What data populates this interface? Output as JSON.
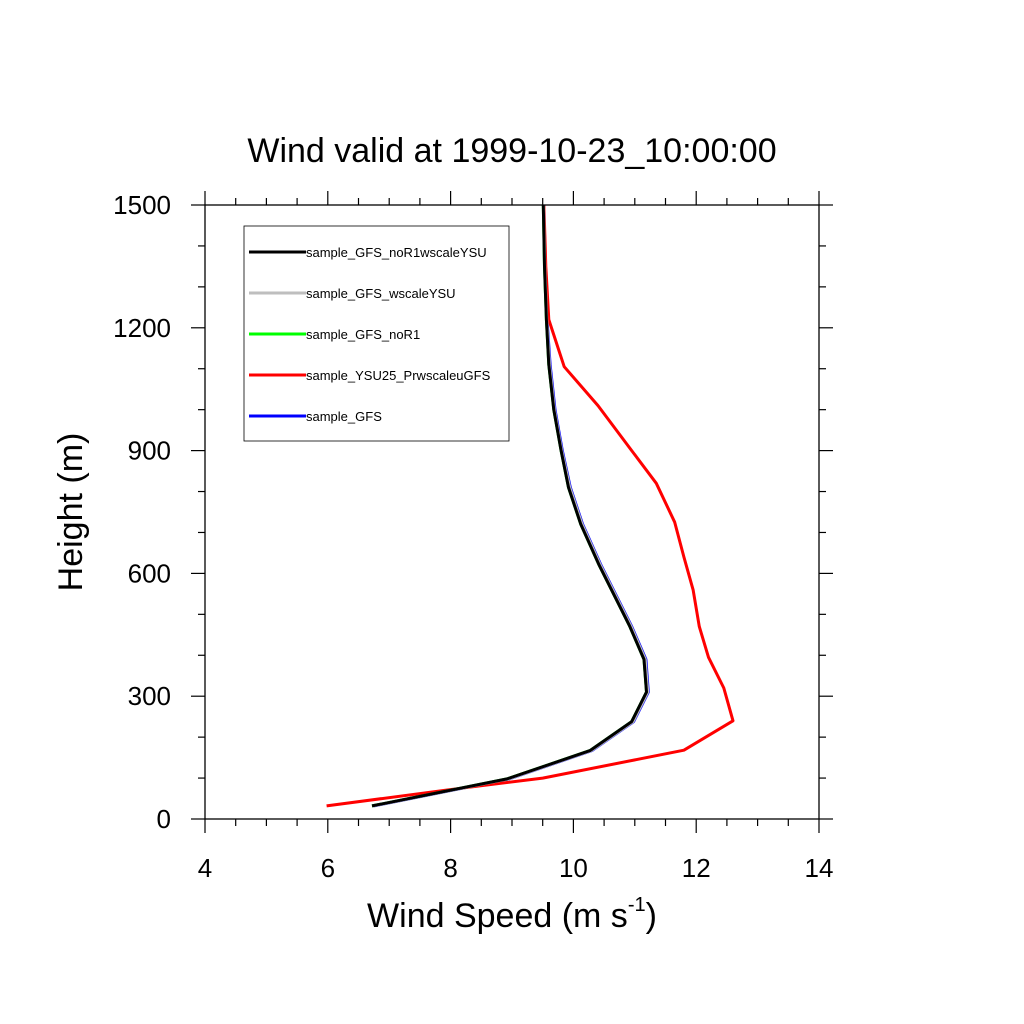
{
  "chart_data": {
    "type": "line",
    "title": "Wind valid at 1999-10-23_10:00:00",
    "xlabel": "Wind Speed (m s",
    "xlabel_superscript": "-1",
    "xlabel_close": ")",
    "ylabel": "Height (m)",
    "xlim": [
      4,
      14
    ],
    "ylim": [
      0,
      1500
    ],
    "x_ticks": [
      4,
      6,
      8,
      10,
      12,
      14
    ],
    "x_tick_labels": [
      "4",
      "6",
      "8",
      "10",
      "12",
      "14"
    ],
    "y_ticks": [
      0,
      300,
      600,
      900,
      1200,
      1500
    ],
    "y_tick_labels": [
      "0",
      "300",
      "600",
      "900",
      "1200",
      "1500"
    ],
    "legend_position": "top-left",
    "series": [
      {
        "name": "sample_GFS",
        "color": "#0000ff",
        "x": [
          6.75,
          8.95,
          10.3,
          10.98,
          11.22,
          11.18,
          10.95,
          10.45,
          10.15,
          9.95,
          9.82,
          9.7,
          9.62,
          9.57,
          9.54,
          9.52
        ],
        "y": [
          32,
          98,
          167,
          238,
          310,
          390,
          470,
          620,
          720,
          810,
          900,
          1000,
          1110,
          1220,
          1350,
          1500
        ]
      },
      {
        "name": "sample_YSU25_PrwscaleuGFS",
        "color": "#ff0000",
        "x": [
          5.98,
          7.9,
          9.5,
          11.8,
          12.6,
          12.45,
          12.2,
          12.05,
          11.95,
          11.8,
          11.65,
          11.35,
          10.95,
          10.4,
          9.85,
          9.6,
          9.55,
          9.52
        ],
        "y": [
          32,
          70,
          100,
          168,
          240,
          320,
          395,
          470,
          560,
          640,
          725,
          820,
          900,
          1010,
          1105,
          1220,
          1350,
          1500
        ]
      },
      {
        "name": "sample_GFS_noR1",
        "color": "#00ff00",
        "x": [
          6.72,
          8.92,
          10.27,
          10.95,
          11.19,
          11.15,
          10.92,
          10.42,
          10.12,
          9.92,
          9.8,
          9.68,
          9.6,
          9.56,
          9.53,
          9.51
        ],
        "y": [
          32,
          98,
          167,
          238,
          310,
          390,
          470,
          620,
          720,
          810,
          900,
          1000,
          1110,
          1220,
          1350,
          1500
        ]
      },
      {
        "name": "sample_GFS_wscaleYSU",
        "color": "#bebebe",
        "x": [
          6.74,
          8.94,
          10.29,
          10.97,
          11.21,
          11.17,
          10.94,
          10.44,
          10.14,
          9.94,
          9.81,
          9.69,
          9.61,
          9.565,
          9.535,
          9.515
        ],
        "y": [
          32,
          98,
          167,
          238,
          310,
          390,
          470,
          620,
          720,
          810,
          900,
          1000,
          1110,
          1220,
          1350,
          1500
        ]
      },
      {
        "name": "sample_GFS_noR1wscaleYSU",
        "color": "#000000",
        "x": [
          6.72,
          8.92,
          10.27,
          10.95,
          11.19,
          11.15,
          10.92,
          10.42,
          10.12,
          9.92,
          9.8,
          9.68,
          9.6,
          9.56,
          9.53,
          9.51
        ],
        "y": [
          32,
          98,
          167,
          238,
          310,
          390,
          470,
          620,
          720,
          810,
          900,
          1000,
          1110,
          1220,
          1350,
          1500
        ]
      }
    ],
    "legend_order": [
      "sample_GFS_noR1wscaleYSU",
      "sample_GFS_wscaleYSU",
      "sample_GFS_noR1",
      "sample_YSU25_PrwscaleuGFS",
      "sample_GFS"
    ]
  }
}
